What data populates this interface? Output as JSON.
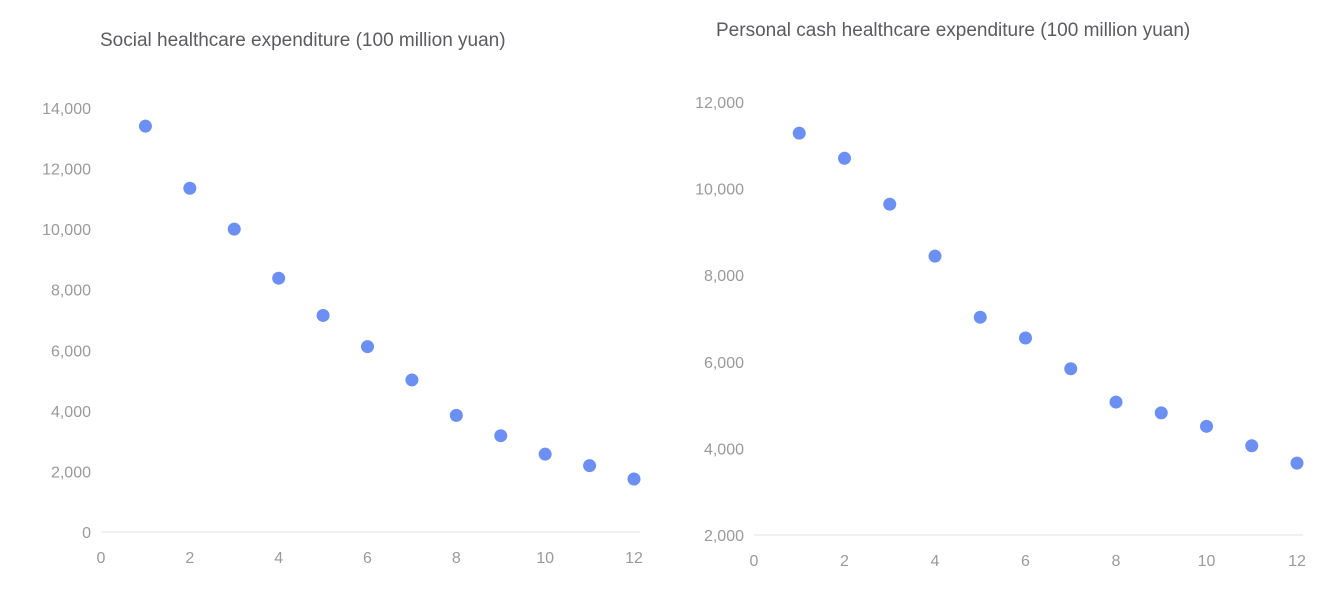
{
  "colors": {
    "point": "#6b8ff2",
    "axis": "#e2e2e2",
    "tick_text": "#9a9a9a",
    "title_text": "#5b5b60"
  },
  "chart_data": [
    {
      "type": "scatter",
      "title": "Social healthcare expenditure (100 million yuan)",
      "xlabel": "",
      "ylabel": "",
      "xlim": [
        0,
        12
      ],
      "ylim": [
        0,
        14000
      ],
      "x_ticks": [
        "0",
        "2",
        "4",
        "6",
        "8",
        "10",
        "12"
      ],
      "y_ticks": [
        "0",
        "2,000",
        "4,000",
        "6,000",
        "8,000",
        "10,000",
        "12,000",
        "14,000"
      ],
      "x_tick_values": [
        0,
        2,
        4,
        6,
        8,
        10,
        12
      ],
      "y_tick_values": [
        0,
        2000,
        4000,
        6000,
        8000,
        10000,
        12000,
        14000
      ],
      "grid": false,
      "series": [
        {
          "x": [
            1,
            2,
            3,
            4,
            5,
            6,
            7,
            8,
            9,
            10,
            11,
            12
          ],
          "y": [
            13400,
            11350,
            10000,
            8380,
            7150,
            6120,
            5020,
            3850,
            3180,
            2570,
            2190,
            1750
          ]
        }
      ]
    },
    {
      "type": "scatter",
      "title": "Personal cash healthcare expenditure (100 million yuan)",
      "xlabel": "",
      "ylabel": "",
      "xlim": [
        0,
        12
      ],
      "ylim": [
        2000,
        12000
      ],
      "x_ticks": [
        "0",
        "2",
        "4",
        "6",
        "8",
        "10",
        "12"
      ],
      "y_ticks": [
        "2,000",
        "4,000",
        "6,000",
        "8,000",
        "10,000",
        "12,000"
      ],
      "x_tick_values": [
        0,
        2,
        4,
        6,
        8,
        10,
        12
      ],
      "y_tick_values": [
        2000,
        4000,
        6000,
        8000,
        10000,
        12000
      ],
      "grid": false,
      "series": [
        {
          "x": [
            1,
            2,
            3,
            4,
            5,
            6,
            7,
            8,
            9,
            10,
            11,
            12
          ],
          "y": [
            11280,
            10700,
            9640,
            8440,
            7030,
            6550,
            5840,
            5070,
            4820,
            4510,
            4060,
            3660
          ]
        }
      ]
    }
  ]
}
